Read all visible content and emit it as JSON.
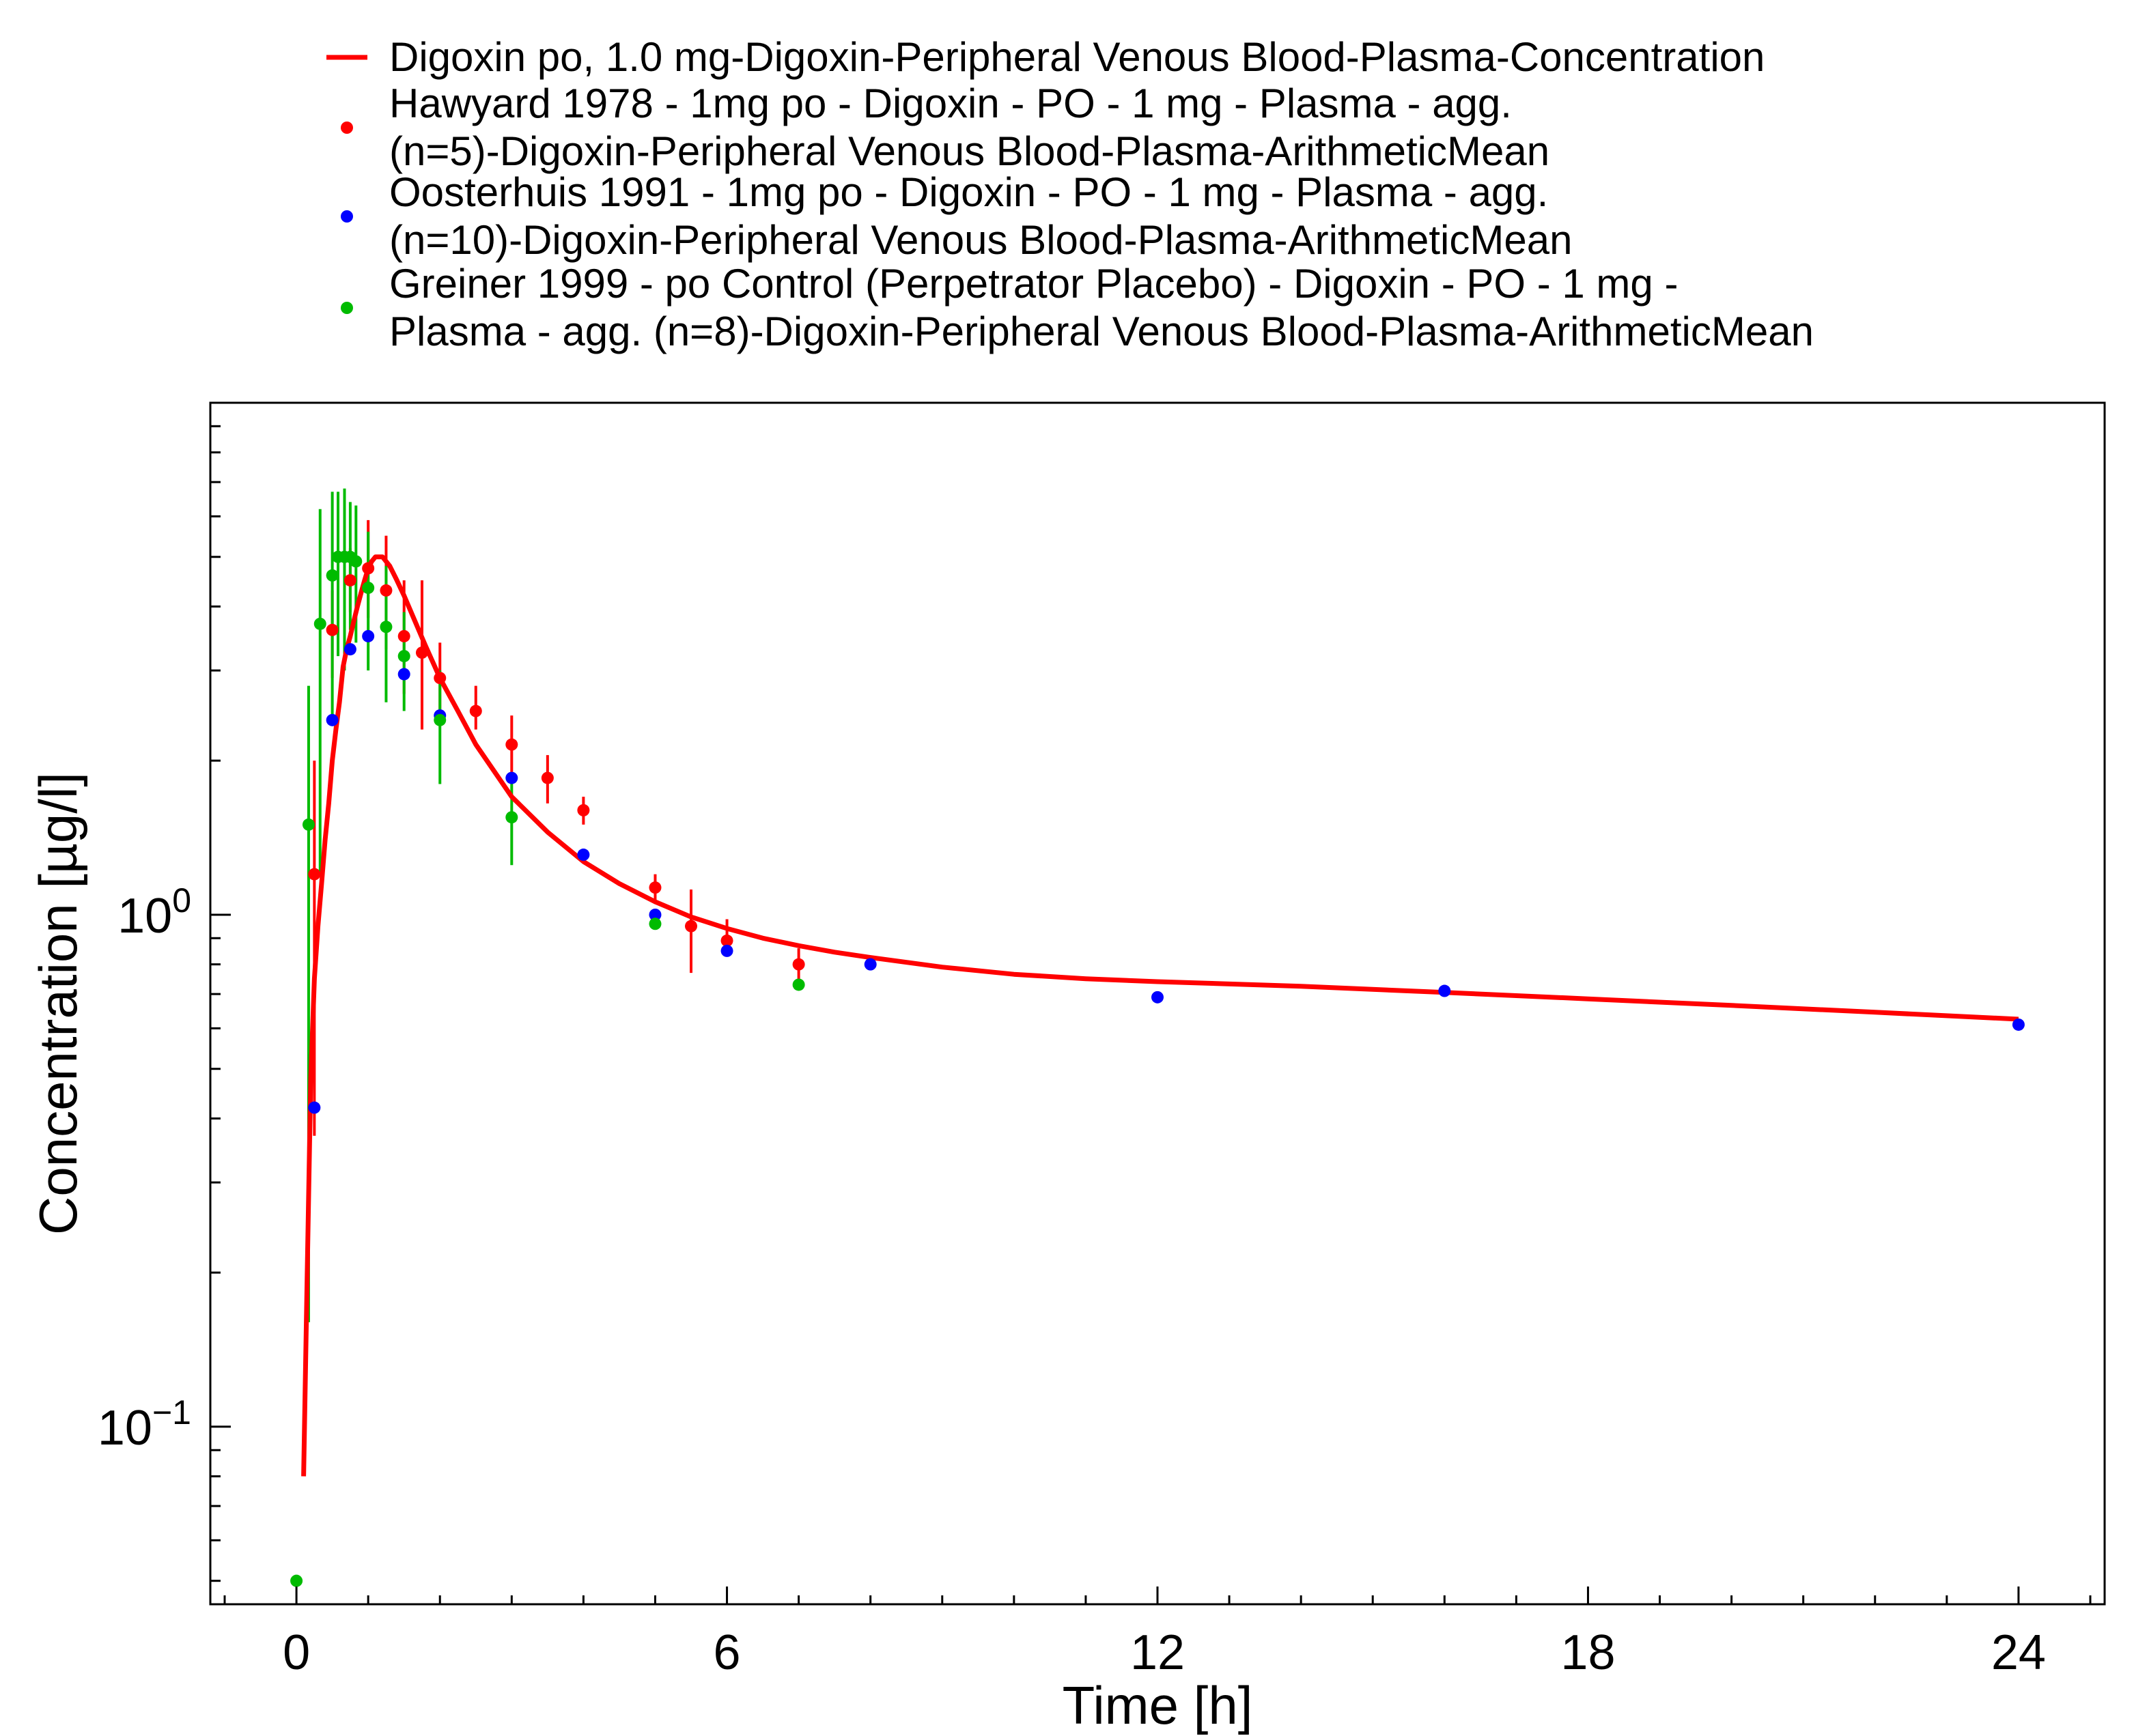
{
  "chart_data": {
    "type": "line",
    "xlabel": "Time [h]",
    "ylabel": "Concentration [µg/l]",
    "xscale": "linear",
    "yscale": "log",
    "xlim": [
      -1.2,
      25.2
    ],
    "ylim": [
      0.045,
      10
    ],
    "xticks": [
      0,
      6,
      12,
      18,
      24
    ],
    "xtick_labels": [
      "0",
      "6",
      "12",
      "18",
      "24"
    ],
    "yticks": [
      0.1,
      1.0
    ],
    "ytick_labels": [
      {
        "base": "10",
        "exp": "−1"
      },
      {
        "base": "10",
        "exp": "0"
      }
    ],
    "grid": false,
    "legend_position": "top (above plot)",
    "series": [
      {
        "name": "Digoxin po, 1.0 mg-Digoxin-Peripheral Venous Blood-Plasma-Concentration",
        "name_lines": [
          "Digoxin po, 1.0 mg-Digoxin-Peripheral Venous Blood-Plasma-Concentration"
        ],
        "kind": "line",
        "color": "#ff0000",
        "x": [
          0.1,
          0.15,
          0.2,
          0.25,
          0.3,
          0.35,
          0.4,
          0.45,
          0.5,
          0.55,
          0.6,
          0.65,
          0.7,
          0.75,
          0.8,
          0.85,
          0.9,
          0.95,
          1.0,
          1.05,
          1.1,
          1.2,
          1.3,
          1.4,
          1.5,
          1.65,
          1.8,
          2.0,
          2.25,
          2.5,
          3.0,
          3.5,
          4.0,
          4.5,
          5.0,
          5.5,
          6.0,
          6.5,
          7.0,
          7.5,
          8.0,
          9.0,
          10.0,
          11.0,
          12.0,
          14.0,
          16.0,
          18.0,
          20.0,
          22.0,
          24.0
        ],
        "y": [
          0.08,
          0.2,
          0.48,
          0.75,
          0.95,
          1.15,
          1.4,
          1.65,
          2.0,
          2.3,
          2.6,
          3.05,
          3.3,
          3.5,
          3.75,
          4.0,
          4.25,
          4.5,
          4.75,
          4.9,
          5.0,
          5.0,
          4.8,
          4.5,
          4.2,
          3.75,
          3.35,
          2.9,
          2.5,
          2.15,
          1.7,
          1.45,
          1.27,
          1.15,
          1.06,
          0.99,
          0.94,
          0.9,
          0.87,
          0.845,
          0.825,
          0.79,
          0.765,
          0.75,
          0.74,
          0.725,
          0.705,
          0.685,
          0.665,
          0.645,
          0.625
        ]
      },
      {
        "name": "Hawyard 1978 - 1mg po - Digoxin - PO - 1 mg - Plasma - agg. (n=5)-Digoxin-Peripheral Venous Blood-Plasma-ArithmeticMean",
        "name_lines": [
          "Hawyard 1978 - 1mg po - Digoxin - PO - 1 mg - Plasma - agg.",
          "(n=5)-Digoxin-Peripheral Venous Blood-Plasma-ArithmeticMean"
        ],
        "kind": "scatter",
        "color": "#ff0000",
        "points": [
          {
            "x": 0.25,
            "y": 1.2,
            "lo": 0.37,
            "hi": 2.0
          },
          {
            "x": 0.5,
            "y": 3.6,
            "lo": 2.9,
            "hi": 4.3
          },
          {
            "x": 0.75,
            "y": 4.5,
            "lo": 3.9,
            "hi": 5.2
          },
          {
            "x": 1.0,
            "y": 4.75,
            "lo": 3.8,
            "hi": 5.9
          },
          {
            "x": 1.25,
            "y": 4.3,
            "lo": 3.3,
            "hi": 5.5
          },
          {
            "x": 1.5,
            "y": 3.5,
            "lo": 2.7,
            "hi": 4.5
          },
          {
            "x": 1.75,
            "y": 3.25,
            "lo": 2.3,
            "hi": 4.5
          },
          {
            "x": 2.0,
            "y": 2.9,
            "lo": 2.4,
            "hi": 3.4
          },
          {
            "x": 2.5,
            "y": 2.5,
            "lo": 2.3,
            "hi": 2.8
          },
          {
            "x": 3.0,
            "y": 2.15,
            "lo": 1.9,
            "hi": 2.45
          },
          {
            "x": 3.5,
            "y": 1.85,
            "lo": 1.65,
            "hi": 2.05
          },
          {
            "x": 4.0,
            "y": 1.6,
            "lo": 1.5,
            "hi": 1.7
          },
          {
            "x": 5.0,
            "y": 1.13,
            "lo": 1.05,
            "hi": 1.2
          },
          {
            "x": 5.5,
            "y": 0.95,
            "lo": 0.77,
            "hi": 1.12
          },
          {
            "x": 6.0,
            "y": 0.89,
            "lo": 0.83,
            "hi": 0.98
          },
          {
            "x": 7.0,
            "y": 0.8,
            "lo": 0.74,
            "hi": 0.86
          }
        ]
      },
      {
        "name": "Oosterhuis 1991 - 1mg po - Digoxin - PO - 1 mg - Plasma - agg. (n=10)-Digoxin-Peripheral Venous Blood-Plasma-ArithmeticMean",
        "name_lines": [
          "Oosterhuis 1991 - 1mg po - Digoxin - PO - 1 mg - Plasma - agg.",
          "(n=10)-Digoxin-Peripheral Venous Blood-Plasma-ArithmeticMean"
        ],
        "kind": "scatter",
        "color": "#0000ff",
        "points": [
          {
            "x": 0.25,
            "y": 0.42
          },
          {
            "x": 0.5,
            "y": 2.4
          },
          {
            "x": 0.75,
            "y": 3.3
          },
          {
            "x": 1.0,
            "y": 3.5
          },
          {
            "x": 1.5,
            "y": 2.95
          },
          {
            "x": 2.0,
            "y": 2.45
          },
          {
            "x": 3.0,
            "y": 1.85
          },
          {
            "x": 4.0,
            "y": 1.31
          },
          {
            "x": 5.0,
            "y": 1.0
          },
          {
            "x": 6.0,
            "y": 0.85
          },
          {
            "x": 8.0,
            "y": 0.8
          },
          {
            "x": 12.0,
            "y": 0.69
          },
          {
            "x": 16.0,
            "y": 0.71
          },
          {
            "x": 24.0,
            "y": 0.61
          }
        ]
      },
      {
        "name": "Greiner 1999 - po Control (Perpetrator Placebo) - Digoxin - PO - 1 mg - Plasma - agg. (n=8)-Digoxin-Peripheral Venous Blood-Plasma-ArithmeticMean",
        "name_lines": [
          "Greiner 1999 - po Control (Perpetrator Placebo) - Digoxin - PO - 1 mg -",
          "Plasma - agg. (n=8)-Digoxin-Peripheral Venous Blood-Plasma-ArithmeticMean"
        ],
        "kind": "scatter",
        "color": "#00bb00",
        "points": [
          {
            "x": 0.0,
            "y": 0.05
          },
          {
            "x": 0.17,
            "y": 1.5,
            "lo": 0.16,
            "hi": 2.8
          },
          {
            "x": 0.33,
            "y": 3.7,
            "lo": 1.2,
            "hi": 6.2
          },
          {
            "x": 0.5,
            "y": 4.6,
            "lo": 2.4,
            "hi": 6.7
          },
          {
            "x": 0.58,
            "y": 5.0,
            "lo": 3.2,
            "hi": 6.7
          },
          {
            "x": 0.67,
            "y": 5.0,
            "lo": 3.0,
            "hi": 6.8
          },
          {
            "x": 0.75,
            "y": 5.0,
            "lo": 3.6,
            "hi": 6.4
          },
          {
            "x": 0.83,
            "y": 4.9,
            "lo": 3.4,
            "hi": 6.3
          },
          {
            "x": 1.0,
            "y": 4.35,
            "lo": 3.0,
            "hi": 5.6
          },
          {
            "x": 1.25,
            "y": 3.65,
            "lo": 2.6,
            "hi": 4.8
          },
          {
            "x": 1.5,
            "y": 3.2,
            "lo": 2.5,
            "hi": 3.9
          },
          {
            "x": 2.0,
            "y": 2.4,
            "lo": 1.8,
            "hi": 3.0
          },
          {
            "x": 3.0,
            "y": 1.55,
            "lo": 1.25,
            "hi": 1.85
          },
          {
            "x": 5.0,
            "y": 0.96
          },
          {
            "x": 7.0,
            "y": 0.73
          }
        ]
      }
    ]
  }
}
